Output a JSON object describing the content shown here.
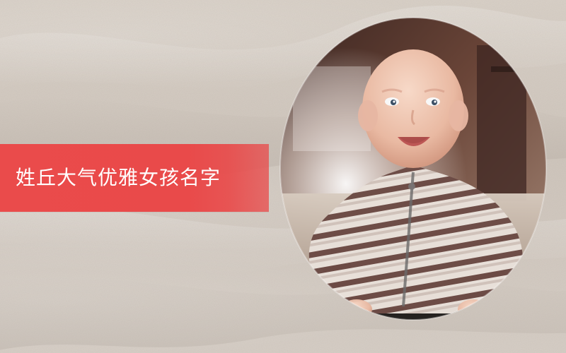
{
  "banner": {
    "title": "姓丘大气优雅女孩名字",
    "color": "#e94a4a"
  },
  "photo": {
    "subject": "baby-photo"
  }
}
